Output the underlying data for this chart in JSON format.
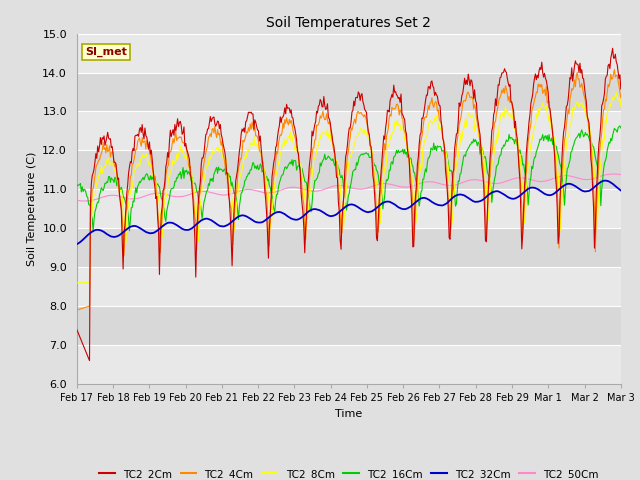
{
  "title": "Soil Temperatures Set 2",
  "xlabel": "Time",
  "ylabel": "Soil Temperature (C)",
  "ylim": [
    6.0,
    15.0
  ],
  "yticks": [
    6.0,
    7.0,
    8.0,
    9.0,
    10.0,
    11.0,
    12.0,
    13.0,
    14.0,
    15.0
  ],
  "xtick_labels": [
    "Feb 17",
    "Feb 18",
    "Feb 19",
    "Feb 20",
    "Feb 21",
    "Feb 22",
    "Feb 23",
    "Feb 24",
    "Feb 25",
    "Feb 26",
    "Feb 27",
    "Feb 28",
    "Feb 29",
    "Mar 1",
    "Mar 2",
    "Mar 3"
  ],
  "series_labels": [
    "TC2_2Cm",
    "TC2_4Cm",
    "TC2_8Cm",
    "TC2_16Cm",
    "TC2_32Cm",
    "TC2_50Cm"
  ],
  "series_colors": [
    "#cc0000",
    "#ff8800",
    "#ffff00",
    "#00cc00",
    "#0000cc",
    "#ff88cc"
  ],
  "legend_label": "SI_met",
  "fig_bg": "#e0e0e0",
  "plot_bg_light": "#e8e8e8",
  "plot_bg_dark": "#d8d8d8",
  "n_points": 600
}
